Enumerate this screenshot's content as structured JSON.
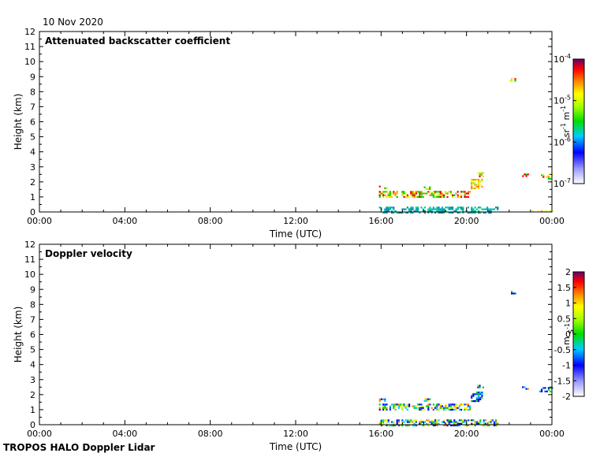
{
  "header": {
    "date": "10 Nov 2020"
  },
  "footer": {
    "instrument": "TROPOS HALO Doppler Lidar"
  },
  "chart_data": [
    {
      "type": "heatmap",
      "title": "Attenuated backscatter coefficient",
      "xlabel": "Time (UTC)",
      "ylabel": "Height (km)",
      "xlim": [
        0,
        24
      ],
      "ylim": [
        0,
        12
      ],
      "x_ticks": [
        "00:00",
        "04:00",
        "08:00",
        "12:00",
        "16:00",
        "20:00",
        "00:00"
      ],
      "y_ticks": [
        "0",
        "1",
        "2",
        "3",
        "4",
        "5",
        "6",
        "7",
        "8",
        "9",
        "10",
        "11",
        "12"
      ],
      "colorbar": {
        "unit": "sr-1 m-1",
        "scale": "log",
        "range": [
          1e-07,
          0.0001
        ],
        "tick_labels": [
          "10-7",
          "10-6",
          "10-5",
          "10-4"
        ]
      },
      "layers": [
        {
          "x_start": 15.9,
          "x_end": 20.2,
          "y_low": 1.0,
          "y_high": 1.4,
          "level": "high"
        },
        {
          "x_start": 15.9,
          "x_end": 16.3,
          "y_low": 1.6,
          "y_high": 1.75,
          "level": "high"
        },
        {
          "x_start": 18.0,
          "x_end": 18.3,
          "y_low": 1.55,
          "y_high": 1.7,
          "level": "high"
        },
        {
          "x_start": 20.2,
          "x_end": 20.7,
          "y_low": 1.6,
          "y_high": 2.2,
          "level": "mid"
        },
        {
          "x_start": 20.5,
          "x_end": 20.8,
          "y_low": 2.4,
          "y_high": 2.65,
          "level": "high"
        },
        {
          "x_start": 22.0,
          "x_end": 22.3,
          "y_low": 8.75,
          "y_high": 8.9,
          "level": "high"
        },
        {
          "x_start": 22.6,
          "x_end": 22.9,
          "y_low": 2.35,
          "y_high": 2.55,
          "level": "high"
        },
        {
          "x_start": 23.4,
          "x_end": 24.0,
          "y_low": 2.2,
          "y_high": 2.5,
          "level": "high"
        },
        {
          "x_start": 15.9,
          "x_end": 21.5,
          "y_low": 0.0,
          "y_high": 0.35,
          "level": "low"
        },
        {
          "x_start": 23.0,
          "x_end": 24.0,
          "y_low": 0.0,
          "y_high": 0.1,
          "level": "mid"
        }
      ]
    },
    {
      "type": "heatmap",
      "title": "Doppler velocity",
      "xlabel": "Time (UTC)",
      "ylabel": "Height (km)",
      "xlim": [
        0,
        24
      ],
      "ylim": [
        0,
        12
      ],
      "x_ticks": [
        "00:00",
        "04:00",
        "08:00",
        "12:00",
        "16:00",
        "20:00",
        "00:00"
      ],
      "y_ticks": [
        "0",
        "1",
        "2",
        "3",
        "4",
        "5",
        "6",
        "7",
        "8",
        "9",
        "10",
        "11",
        "12"
      ],
      "colorbar": {
        "unit": "m s-1",
        "range": [
          -2,
          2
        ],
        "tick_labels": [
          "2",
          "1.5",
          "1",
          "0.5",
          "0",
          "-0.5",
          "-1",
          "-1.5",
          "-2"
        ]
      },
      "layers": [
        {
          "x_start": 15.9,
          "x_end": 20.2,
          "y_low": 1.0,
          "y_high": 1.4,
          "level": "mixed"
        },
        {
          "x_start": 15.9,
          "x_end": 16.3,
          "y_low": 1.6,
          "y_high": 1.75,
          "level": "mixed"
        },
        {
          "x_start": 18.0,
          "x_end": 18.3,
          "y_low": 1.55,
          "y_high": 1.75,
          "level": "mixed"
        },
        {
          "x_start": 20.2,
          "x_end": 20.7,
          "y_low": 1.6,
          "y_high": 2.2,
          "level": "negative"
        },
        {
          "x_start": 20.5,
          "x_end": 20.8,
          "y_low": 2.4,
          "y_high": 2.65,
          "level": "mixed"
        },
        {
          "x_start": 22.0,
          "x_end": 22.3,
          "y_low": 8.75,
          "y_high": 8.9,
          "level": "negative"
        },
        {
          "x_start": 22.6,
          "x_end": 22.9,
          "y_low": 2.35,
          "y_high": 2.55,
          "level": "mixed"
        },
        {
          "x_start": 23.4,
          "x_end": 24.0,
          "y_low": 2.2,
          "y_high": 2.5,
          "level": "negative"
        },
        {
          "x_start": 15.9,
          "x_end": 21.5,
          "y_low": 0.0,
          "y_high": 0.35,
          "level": "mixed"
        }
      ]
    }
  ]
}
